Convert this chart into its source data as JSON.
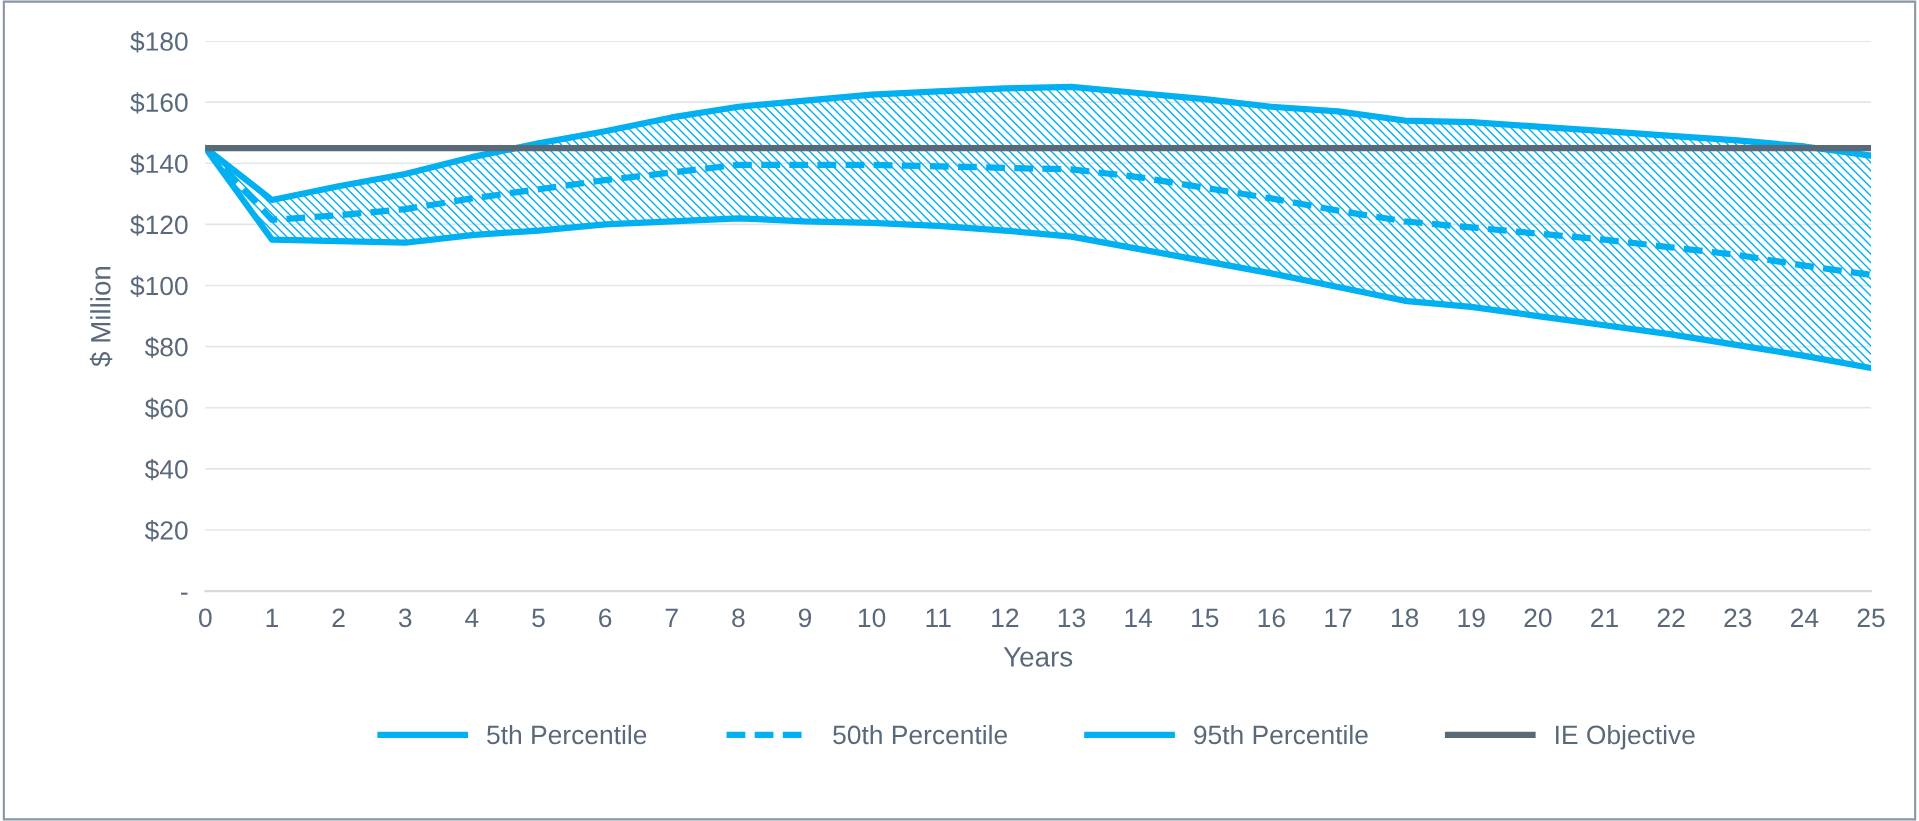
{
  "chart_data": {
    "type": "line",
    "xlabel": "Years",
    "ylabel": "$ Million",
    "x": [
      0,
      1,
      2,
      3,
      4,
      5,
      6,
      7,
      8,
      9,
      10,
      11,
      12,
      13,
      14,
      15,
      16,
      17,
      18,
      19,
      20,
      21,
      22,
      23,
      24,
      25
    ],
    "series": [
      {
        "name": "5th Percentile",
        "color": "#00b0f0",
        "line_style": "solid",
        "values": [
          145,
          115,
          114.5,
          114,
          116.5,
          118,
          120,
          121,
          122,
          121,
          120.5,
          119.5,
          118,
          116,
          112,
          108,
          104,
          99.5,
          95,
          93,
          90,
          87,
          84,
          80.5,
          77,
          73
        ]
      },
      {
        "name": "50th Percentile",
        "color": "#00b0f0",
        "line_style": "dashed",
        "values": [
          145,
          121.5,
          123,
          125,
          128.5,
          131.5,
          134.5,
          137,
          139.5,
          139.5,
          139.5,
          139,
          138.5,
          138,
          135.5,
          132,
          128.5,
          124.5,
          121,
          119,
          117,
          115,
          112.5,
          110,
          106.5,
          103.5
        ],
        "lower": [
          145,
          115,
          114.5,
          114,
          116.5,
          118,
          120,
          121,
          122,
          121,
          120.5,
          119.5,
          118,
          116,
          112,
          108,
          104,
          99.5,
          95,
          93,
          90,
          87,
          84,
          80.5,
          77,
          73
        ],
        "upper": [
          145,
          128,
          132.5,
          136.5,
          142,
          146.5,
          150.5,
          155,
          158.5,
          160.5,
          162.5,
          163.5,
          164.5,
          165,
          163,
          161,
          158.5,
          157,
          154,
          153.5,
          152,
          150.5,
          149,
          147.5,
          145.5,
          142.5
        ]
      },
      {
        "name": "95th Percentile",
        "color": "#00b0f0",
        "line_style": "solid",
        "values": [
          145,
          128,
          132.5,
          136.5,
          142,
          146.5,
          150.5,
          155,
          158.5,
          160.5,
          162.5,
          163.5,
          164.5,
          165,
          163,
          161,
          158.5,
          157,
          154,
          153.5,
          152,
          150.5,
          149,
          147.5,
          145.5,
          142.5
        ]
      },
      {
        "name": "IE Objective",
        "color": "#5a6978",
        "line_style": "solid",
        "values": [
          145,
          145,
          145,
          145,
          145,
          145,
          145,
          145,
          145,
          145,
          145,
          145,
          145,
          145,
          145,
          145,
          145,
          145,
          145,
          145,
          145,
          145,
          145,
          145,
          145,
          145
        ]
      }
    ],
    "xlim": [
      0,
      25
    ],
    "xticks": [
      0,
      1,
      2,
      3,
      4,
      5,
      6,
      7,
      8,
      9,
      10,
      11,
      12,
      13,
      14,
      15,
      16,
      17,
      18,
      19,
      20,
      21,
      22,
      23,
      24,
      25
    ],
    "ylim": [
      0,
      180
    ],
    "yticks": [
      {
        "value": 0,
        "label": "-"
      },
      {
        "value": 20,
        "label": "$20"
      },
      {
        "value": 40,
        "label": "$40"
      },
      {
        "value": 60,
        "label": "$60"
      },
      {
        "value": 80,
        "label": "$80"
      },
      {
        "value": 100,
        "label": "$100"
      },
      {
        "value": 120,
        "label": "$120"
      },
      {
        "value": 140,
        "label": "$140"
      },
      {
        "value": 160,
        "label": "$160"
      },
      {
        "value": 180,
        "label": "$180"
      }
    ],
    "grid": "y",
    "legend": "bottom",
    "marker": "none"
  }
}
